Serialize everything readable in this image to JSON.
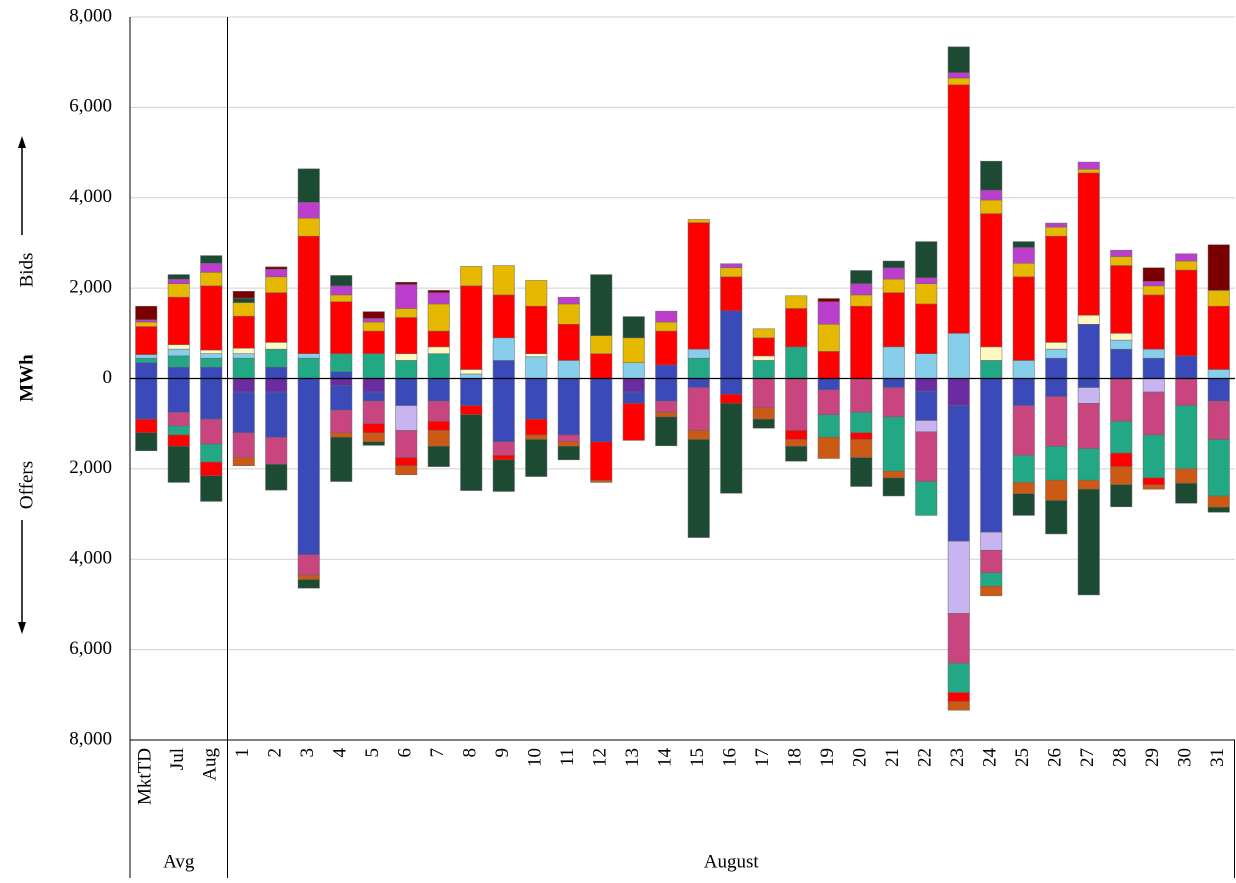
{
  "chart_data": {
    "type": "stacked_bar",
    "categories": [
      "MktTD",
      "Jul",
      "Aug",
      "1",
      "2",
      "3",
      "4",
      "5",
      "6",
      "7",
      "8",
      "9",
      "10",
      "11",
      "12",
      "13",
      "14",
      "15",
      "16",
      "17",
      "18",
      "19",
      "20",
      "21",
      "22",
      "23",
      "24",
      "25",
      "26",
      "27",
      "28",
      "29",
      "30",
      "31"
    ],
    "group_labels": [
      "Avg",
      "August"
    ],
    "y_label": "MWh",
    "y_label_top": "Bids",
    "y_label_bottom": "Offers",
    "ylim": [
      -8000,
      8000
    ],
    "yticks": [
      {
        "value": -8000,
        "label": "8,000"
      },
      {
        "value": -6000,
        "label": "6,000"
      },
      {
        "value": -4000,
        "label": "4,000"
      },
      {
        "value": -2000,
        "label": "2,000"
      },
      0,
      {
        "value": 2000,
        "label": "2,000"
      },
      {
        "value": 4000,
        "label": "4,000"
      },
      {
        "value": 6000,
        "label": "6,000"
      },
      {
        "value": 8000,
        "label": "8,000"
      }
    ],
    "grid": true,
    "series": [
      {
        "color": "#3a4ab8",
        "values": [
          350,
          250,
          250,
          0,
          250,
          0,
          150,
          0,
          0,
          0,
          0,
          400,
          0,
          0,
          0,
          0,
          300,
          0,
          1500,
          0,
          0,
          0,
          0,
          0,
          0,
          0,
          0,
          0,
          450,
          1200,
          650,
          450,
          500,
          0
        ]
      },
      {
        "color": "#22a884",
        "values": [
          100,
          250,
          200,
          450,
          400,
          450,
          400,
          550,
          400,
          550,
          0,
          0,
          0,
          0,
          0,
          0,
          0,
          450,
          0,
          400,
          700,
          0,
          0,
          0,
          0,
          0,
          400,
          0,
          0,
          0,
          0,
          0,
          0,
          0
        ]
      },
      {
        "color": "#87ceeb",
        "values": [
          80,
          150,
          100,
          100,
          0,
          100,
          0,
          0,
          0,
          0,
          100,
          500,
          480,
          400,
          0,
          350,
          0,
          200,
          0,
          0,
          0,
          0,
          0,
          700,
          550,
          1000,
          0,
          400,
          200,
          0,
          200,
          200,
          0,
          200
        ]
      },
      {
        "color": "#fff8c0",
        "values": [
          0,
          100,
          80,
          120,
          150,
          0,
          0,
          0,
          150,
          150,
          100,
          0,
          70,
          0,
          0,
          0,
          0,
          0,
          0,
          100,
          0,
          0,
          0,
          0,
          0,
          0,
          300,
          0,
          150,
          200,
          150,
          0,
          0,
          0
        ]
      },
      {
        "color": "#ff0000",
        "values": [
          620,
          1050,
          1420,
          710,
          1100,
          2600,
          1150,
          500,
          800,
          350,
          1850,
          950,
          1050,
          800,
          550,
          0,
          750,
          2800,
          750,
          400,
          850,
          600,
          1600,
          1200,
          1100,
          5500,
          2950,
          1850,
          2350,
          3150,
          1500,
          1200,
          1900,
          1400
        ]
      },
      {
        "color": "#e6b800",
        "values": [
          100,
          300,
          300,
          300,
          350,
          400,
          150,
          200,
          200,
          600,
          430,
          650,
          570,
          450,
          400,
          550,
          200,
          70,
          200,
          200,
          280,
          600,
          250,
          300,
          450,
          150,
          300,
          300,
          200,
          80,
          200,
          200,
          200,
          350
        ]
      },
      {
        "color": "#bb3fcc",
        "values": [
          50,
          100,
          200,
          0,
          170,
          350,
          200,
          80,
          530,
          250,
          0,
          0,
          0,
          150,
          0,
          0,
          240,
          0,
          90,
          0,
          0,
          500,
          250,
          250,
          130,
          120,
          220,
          350,
          90,
          160,
          140,
          100,
          160,
          0
        ]
      },
      {
        "color": "#1c4a33",
        "values": [
          0,
          100,
          170,
          100,
          0,
          740,
          230,
          0,
          0,
          0,
          0,
          0,
          0,
          0,
          1350,
          470,
          0,
          0,
          0,
          0,
          0,
          0,
          290,
          150,
          800,
          570,
          640,
          130,
          0,
          0,
          0,
          0,
          0,
          0
        ]
      },
      {
        "color": "#7a0000",
        "values": [
          300,
          0,
          0,
          150,
          50,
          0,
          0,
          150,
          50,
          50,
          0,
          0,
          0,
          0,
          0,
          0,
          0,
          0,
          0,
          0,
          0,
          70,
          0,
          0,
          0,
          0,
          0,
          0,
          0,
          0,
          0,
          300,
          0,
          1010
        ]
      },
      {
        "color": "#6a2ca0",
        "values": [
          0,
          0,
          0,
          -300,
          -300,
          0,
          -150,
          -300,
          0,
          0,
          0,
          0,
          0,
          0,
          0,
          -300,
          0,
          0,
          0,
          0,
          0,
          0,
          0,
          0,
          -280,
          -600,
          0,
          0,
          0,
          0,
          0,
          0,
          0,
          0
        ]
      },
      {
        "color": "#3a4ab8",
        "values": [
          -900,
          -750,
          -900,
          -900,
          -1000,
          -3900,
          -550,
          -200,
          -600,
          -500,
          -600,
          -1400,
          -900,
          -1250,
          -1400,
          -250,
          -500,
          -200,
          -350,
          0,
          0,
          -250,
          0,
          -200,
          -650,
          -3000,
          -3400,
          -600,
          -400,
          -200,
          0,
          0,
          0,
          -500
        ]
      },
      {
        "color": "#c8b4f0",
        "values": [
          0,
          0,
          0,
          0,
          0,
          0,
          0,
          0,
          -550,
          0,
          0,
          0,
          0,
          0,
          0,
          0,
          0,
          0,
          0,
          0,
          0,
          0,
          0,
          0,
          -250,
          -1600,
          -400,
          0,
          0,
          -350,
          0,
          -300,
          0,
          0
        ]
      },
      {
        "color": "#c8457f",
        "values": [
          0,
          -300,
          -550,
          -550,
          -600,
          -450,
          -500,
          -500,
          -600,
          -450,
          0,
          -300,
          0,
          -150,
          0,
          0,
          -250,
          -950,
          0,
          -650,
          -1150,
          -550,
          -750,
          -650,
          -1100,
          -1100,
          -500,
          -1100,
          -1100,
          -1000,
          -950,
          -950,
          -600,
          -850
        ]
      },
      {
        "color": "#22a884",
        "values": [
          0,
          -200,
          -400,
          0,
          0,
          0,
          0,
          0,
          0,
          0,
          0,
          0,
          0,
          0,
          0,
          0,
          0,
          0,
          0,
          0,
          0,
          -500,
          -450,
          -1200,
          -750,
          -650,
          -300,
          -600,
          -750,
          -700,
          -700,
          -950,
          -1400,
          -1250
        ]
      },
      {
        "color": "#ff0000",
        "values": [
          -300,
          -250,
          -300,
          0,
          0,
          0,
          0,
          -200,
          -180,
          -200,
          -200,
          -100,
          -350,
          0,
          -850,
          -820,
          0,
          0,
          -200,
          0,
          -200,
          0,
          -150,
          0,
          0,
          -200,
          0,
          0,
          0,
          0,
          -300,
          -150,
          0,
          0
        ]
      },
      {
        "color": "#cc5a14",
        "values": [
          0,
          0,
          0,
          -180,
          0,
          -100,
          -100,
          -200,
          -200,
          -350,
          0,
          0,
          -100,
          -100,
          -50,
          0,
          -100,
          -200,
          0,
          -250,
          -150,
          -470,
          -400,
          -150,
          0,
          -190,
          -210,
          -250,
          -450,
          -200,
          -400,
          -100,
          -320,
          -250
        ]
      },
      {
        "color": "#1c4a33",
        "values": [
          -400,
          -800,
          -570,
          0,
          -570,
          -190,
          -980,
          -80,
          0,
          -450,
          -1680,
          -700,
          -820,
          -300,
          0,
          0,
          -640,
          -2170,
          -1990,
          -200,
          -330,
          0,
          -640,
          -400,
          0,
          0,
          0,
          -480,
          -740,
          -2340,
          -490,
          0,
          -440,
          -110
        ]
      }
    ]
  }
}
